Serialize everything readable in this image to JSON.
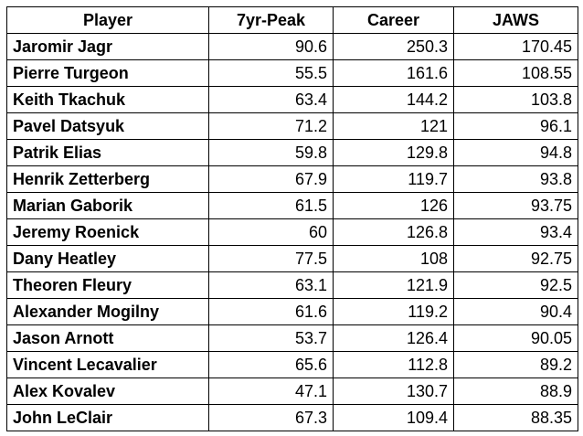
{
  "table": {
    "header": [
      "Player",
      "7yr-Peak",
      "Career",
      "JAWS"
    ],
    "rows": [
      [
        "Jaromir Jagr",
        90.6,
        250.3,
        170.45
      ],
      [
        "Pierre Turgeon",
        55.5,
        161.6,
        108.55
      ],
      [
        "Keith Tkachuk",
        63.4,
        144.2,
        103.8
      ],
      [
        "Pavel Datsyuk",
        71.2,
        121,
        96.1
      ],
      [
        "Patrik Elias",
        59.8,
        129.8,
        94.8
      ],
      [
        "Henrik Zetterberg",
        67.9,
        119.7,
        93.8
      ],
      [
        "Marian Gaborik",
        61.5,
        126,
        93.75
      ],
      [
        "Jeremy Roenick",
        60,
        126.8,
        93.4
      ],
      [
        "Dany Heatley",
        77.5,
        108,
        92.75
      ],
      [
        "Theoren Fleury",
        63.1,
        121.9,
        92.5
      ],
      [
        "Alexander Mogilny",
        61.6,
        119.2,
        90.4
      ],
      [
        "Jason Arnott",
        53.7,
        126.4,
        90.05
      ],
      [
        "Vincent Lecavalier",
        65.6,
        112.8,
        89.2
      ],
      [
        "Alex Kovalev",
        47.1,
        130.7,
        88.9
      ],
      [
        "John LeClair",
        67.3,
        109.4,
        88.35
      ]
    ]
  }
}
